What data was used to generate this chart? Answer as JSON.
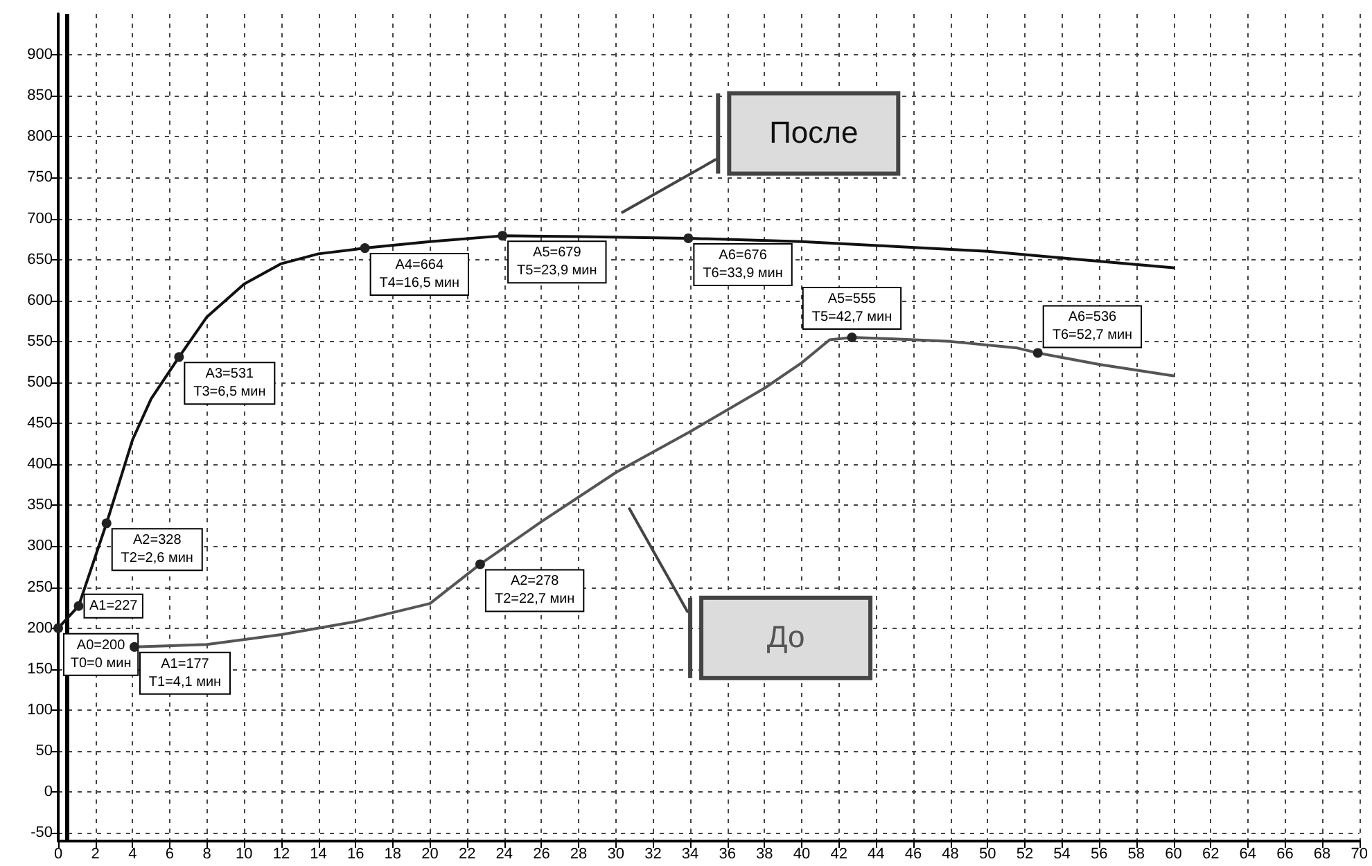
{
  "chart_data": {
    "type": "line",
    "x": [
      0,
      1.1,
      2.6,
      4,
      5,
      6.5,
      8,
      10,
      12,
      14,
      16.5,
      20,
      23.9,
      28,
      33.9,
      40,
      45,
      50,
      55,
      60
    ],
    "series": [
      {
        "name": "После",
        "color": "#111111",
        "values": [
          200,
          227,
          328,
          430,
          480,
          531,
          580,
          620,
          645,
          657,
          664,
          672,
          679,
          678,
          676,
          672,
          666,
          660,
          650,
          640
        ]
      },
      {
        "name": "До",
        "color": "#555555",
        "x": [
          4.1,
          8,
          12,
          16,
          20,
          22.7,
          26,
          30,
          34,
          38,
          40,
          41.5,
          42.7,
          45,
          48,
          51.6,
          52.7,
          56,
          60
        ],
        "values": [
          177,
          180,
          192,
          208,
          230,
          278,
          330,
          390,
          440,
          493,
          524,
          552,
          555,
          553,
          550,
          542,
          536,
          522,
          508
        ]
      }
    ],
    "xlim": [
      0,
      70
    ],
    "xticks": [
      0,
      2,
      4,
      6,
      8,
      10,
      12,
      14,
      16,
      18,
      20,
      22,
      24,
      26,
      28,
      30,
      32,
      34,
      36,
      38,
      40,
      42,
      44,
      46,
      48,
      50,
      52,
      54,
      56,
      58,
      60,
      62,
      64,
      66,
      68,
      70
    ],
    "ylim": [
      -60,
      950
    ],
    "yticks": [
      -50,
      0,
      50,
      100,
      150,
      200,
      250,
      300,
      350,
      400,
      450,
      500,
      550,
      600,
      650,
      700,
      750,
      800,
      850,
      900
    ],
    "grid": true,
    "legend": false,
    "marker": "none",
    "line_style": "solid",
    "ref_lines": [
      {
        "axis": "x",
        "value": 0.5,
        "color": "#000000"
      }
    ],
    "annotations": [
      {
        "text": "A0=200\nT0=0 мин",
        "x": 0,
        "y": 200
      },
      {
        "text": "A1=227",
        "x": 1.1,
        "y": 227
      },
      {
        "text": "A2=328\nT2=2,6 мин",
        "x": 2.6,
        "y": 328
      },
      {
        "text": "A3=531\nT3=6,5 мин",
        "x": 6.5,
        "y": 531
      },
      {
        "text": "A4=664\nT4=16,5 мин",
        "x": 16.5,
        "y": 664
      },
      {
        "text": "A5=679\nT5=23,9 мин",
        "x": 23.9,
        "y": 679
      },
      {
        "text": "A6=676\nT6=33,9 мин",
        "x": 33.9,
        "y": 676
      },
      {
        "text": "A1=177\nT1=4,1 мин",
        "x": 4.1,
        "y": 177
      },
      {
        "text": "A2=278\nT2=22,7 мин",
        "x": 22.7,
        "y": 278
      },
      {
        "text": "A5=555\nT5=42,7 мин",
        "x": 42.7,
        "y": 555
      },
      {
        "text": "A6=536\nT6=52,7 мин",
        "x": 52.7,
        "y": 536
      }
    ]
  }
}
